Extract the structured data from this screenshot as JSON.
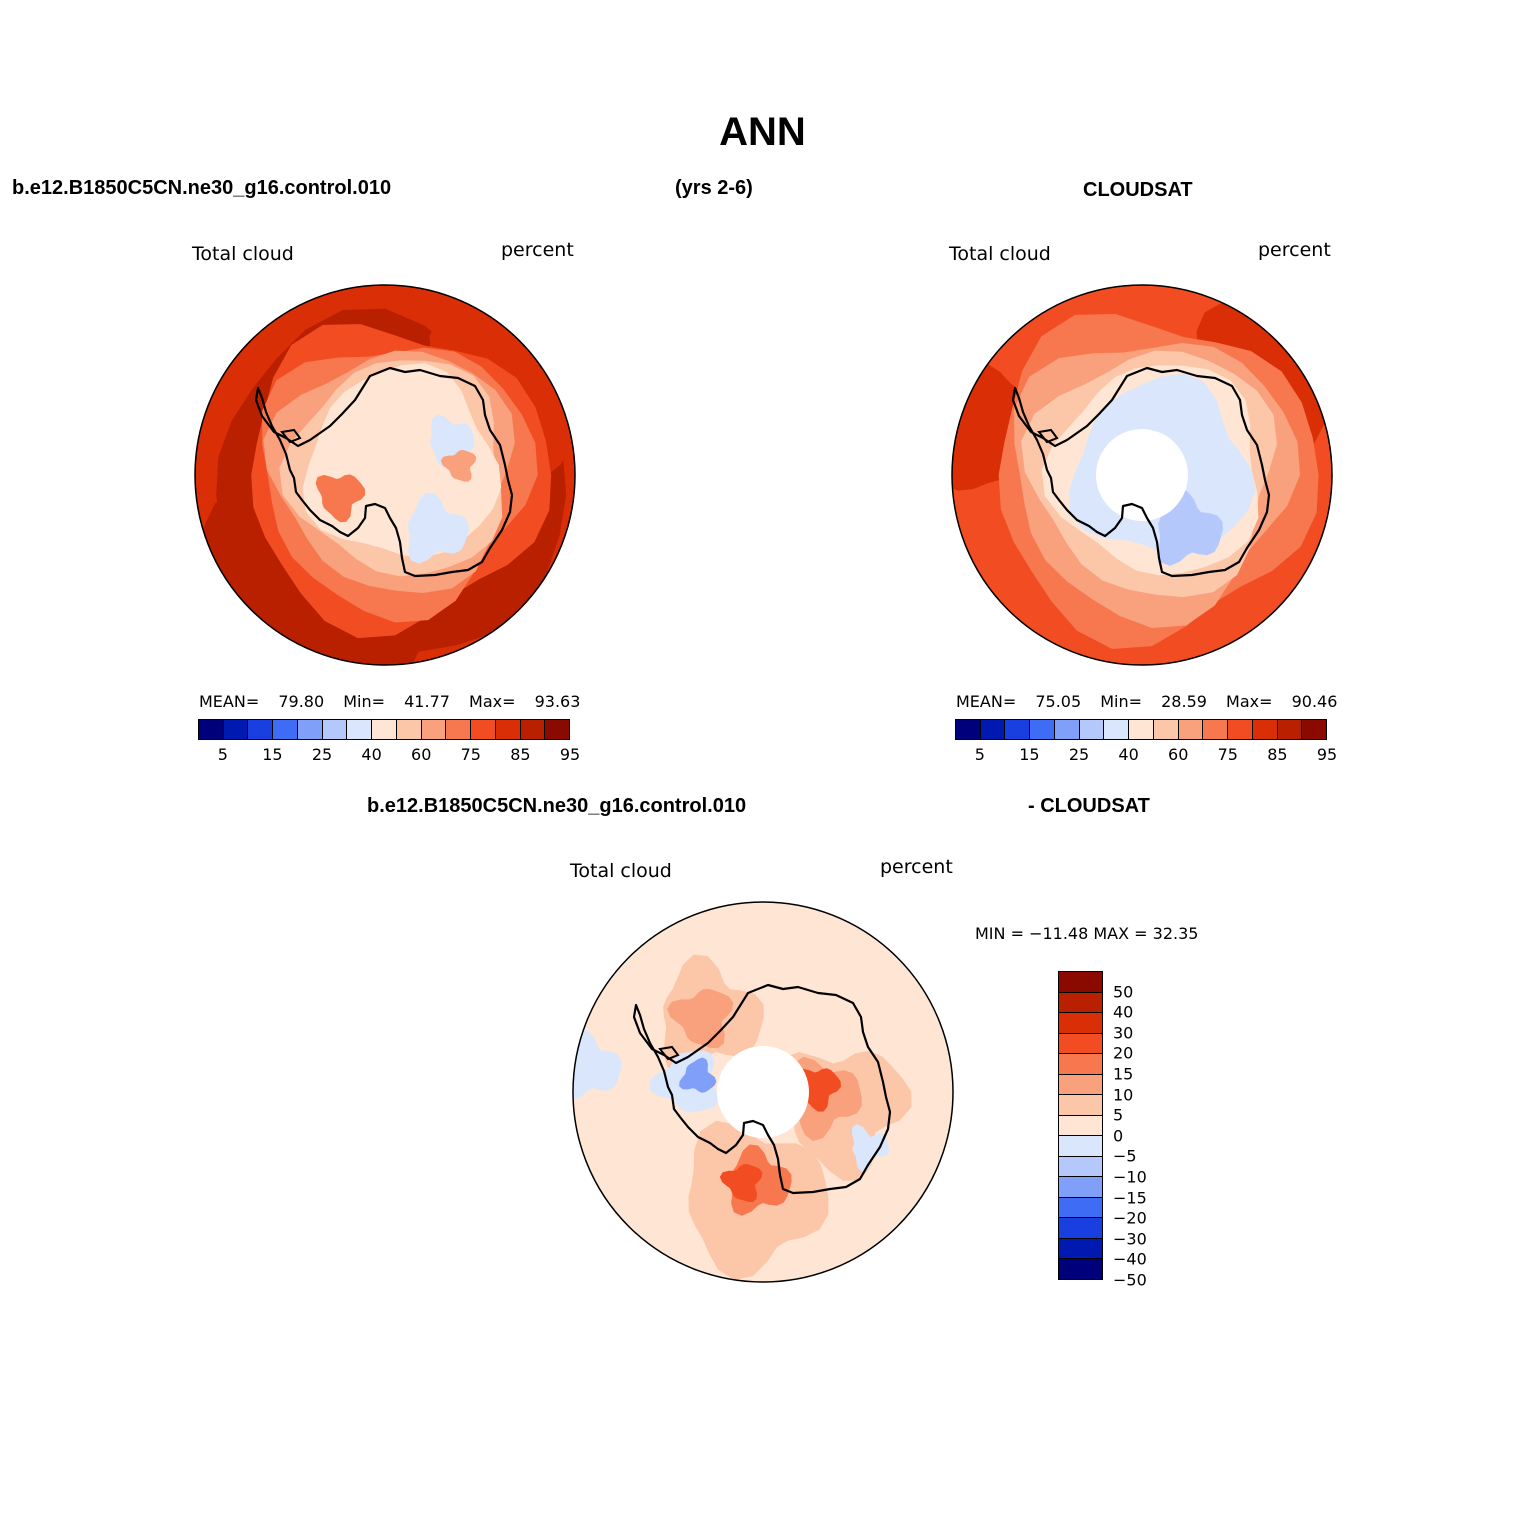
{
  "title": "ANN",
  "header": {
    "case_name": "b.e12.B1850C5CN.ne30_g16.control.010",
    "years": "(yrs 2-6)",
    "obs_name": "CLOUDSAT"
  },
  "diff_header": {
    "case_name": "b.e12.B1850C5CN.ne30_g16.control.010",
    "obs_name": "- CLOUDSAT"
  },
  "panels": [
    {
      "id": "model",
      "variable": "Total cloud",
      "units": "percent",
      "mean_label": "MEAN=",
      "mean": "79.80",
      "min_label": "Min=",
      "min": "41.77",
      "max_label": "Max=",
      "max": "93.63"
    },
    {
      "id": "obs",
      "variable": "Total cloud",
      "units": "percent",
      "mean_label": "MEAN=",
      "mean": "75.05",
      "min_label": "Min=",
      "min": "28.59",
      "max_label": "Max=",
      "max": "90.46"
    },
    {
      "id": "diff",
      "variable": "Total cloud",
      "units": "percent",
      "minmax_text": "MIN = −11.48 MAX =  32.35"
    }
  ],
  "abs_colorbar": {
    "colors": [
      "#00007a",
      "#0019b0",
      "#1a3fe0",
      "#3f6cf5",
      "#7f9ff8",
      "#b4c8fb",
      "#d9e6fb",
      "#ffe6d4",
      "#fcc6a9",
      "#f9a07c",
      "#f7784f",
      "#f24d22",
      "#d92e06",
      "#b82000",
      "#8a0a00"
    ],
    "tick_labels": [
      "5",
      "15",
      "25",
      "40",
      "60",
      "75",
      "85",
      "95"
    ]
  },
  "diff_colorbar": {
    "colors": [
      "#8a0a00",
      "#b82000",
      "#d92e06",
      "#f24d22",
      "#f7784f",
      "#f9a07c",
      "#fcc6a9",
      "#ffe6d4",
      "#d9e6fb",
      "#b4c8fb",
      "#7f9ff8",
      "#3f6cf5",
      "#1a3fe0",
      "#0019b0",
      "#00007a"
    ],
    "tick_labels": [
      "50",
      "40",
      "30",
      "20",
      "15",
      "10",
      "5",
      "0",
      "−5",
      "−10",
      "−15",
      "−20",
      "−30",
      "−40",
      "−50"
    ]
  },
  "chart_data": [
    {
      "type": "heatmap",
      "title": "Total cloud (percent) — b.e12.B1850C5CN.ne30_g16.control.010",
      "projection": "south polar stereographic",
      "contour_levels": [
        5,
        10,
        15,
        20,
        25,
        30,
        40,
        50,
        60,
        70,
        75,
        80,
        85,
        90,
        95
      ],
      "mean": 79.8,
      "min": 41.77,
      "max": 93.63
    },
    {
      "type": "heatmap",
      "title": "Total cloud (percent) — CLOUDSAT",
      "projection": "south polar stereographic",
      "contour_levels": [
        5,
        10,
        15,
        20,
        25,
        30,
        40,
        50,
        60,
        70,
        75,
        80,
        85,
        90,
        95
      ],
      "mean": 75.05,
      "min": 28.59,
      "max": 90.46
    },
    {
      "type": "heatmap",
      "title": "Total cloud (percent) — model - CLOUDSAT",
      "projection": "south polar stereographic",
      "contour_levels": [
        -50,
        -40,
        -30,
        -20,
        -15,
        -10,
        -5,
        0,
        5,
        10,
        15,
        20,
        30,
        40,
        50
      ],
      "min": -11.48,
      "max": 32.35
    }
  ]
}
